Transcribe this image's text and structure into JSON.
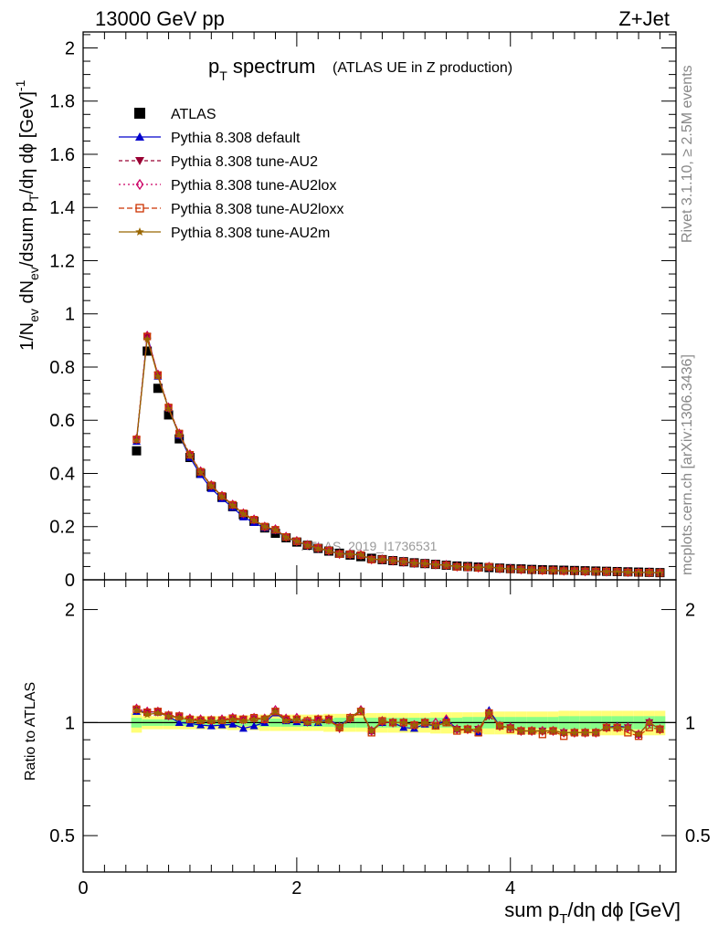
{
  "header": {
    "left": "13000 GeV pp",
    "right": "Z+Jet"
  },
  "side_text": {
    "rivet": "Rivet 3.1.10, ≥ 2.5M events",
    "mcplots": "mcplots.cern.ch [arXiv:1306.3436]"
  },
  "watermark": "ATLAS_2019_I1736531",
  "chart_data": [
    {
      "type": "line",
      "title_main": "p",
      "title_sub": "T",
      "title_rest": " spectrum",
      "title_note": "(ATLAS UE in Z production)",
      "ylabel": "1/N_ev dN_ev/dsum p_T/dη dϕ [GeV]^-1",
      "xlim": [
        0,
        5.55
      ],
      "ylim": [
        0,
        2.06
      ],
      "yticks": [
        0,
        0.2,
        0.4,
        0.6,
        0.8,
        1,
        1.2,
        1.4,
        1.6,
        1.8,
        2
      ],
      "ytick_labels": [
        "0",
        "0.2",
        "0.4",
        "0.6",
        "0.8",
        "1",
        "1.2",
        "1.4",
        "1.6",
        "1.8",
        "2"
      ],
      "x": [
        0.5,
        0.6,
        0.7,
        0.8,
        0.9,
        1.0,
        1.1,
        1.2,
        1.3,
        1.4,
        1.5,
        1.6,
        1.7,
        1.8,
        1.9,
        2.0,
        2.1,
        2.2,
        2.3,
        2.4,
        2.5,
        2.6,
        2.7,
        2.8,
        2.9,
        3.0,
        3.1,
        3.2,
        3.3,
        3.4,
        3.5,
        3.6,
        3.7,
        3.8,
        3.9,
        4.0,
        4.1,
        4.2,
        4.3,
        4.4,
        4.5,
        4.6,
        4.7,
        4.8,
        4.9,
        5.0,
        5.1,
        5.2,
        5.3,
        5.4
      ],
      "series": [
        {
          "name": "ATLAS",
          "color": "#000000",
          "marker": "square",
          "values": [
            0.485,
            0.86,
            0.72,
            0.62,
            0.53,
            0.46,
            0.4,
            0.35,
            0.31,
            0.275,
            0.245,
            0.22,
            0.195,
            0.175,
            0.158,
            0.142,
            0.13,
            0.118,
            0.108,
            0.1,
            0.093,
            0.087,
            0.081,
            0.076,
            0.072,
            0.068,
            0.064,
            0.061,
            0.058,
            0.055,
            0.052,
            0.05,
            0.048,
            0.046,
            0.044,
            0.042,
            0.041,
            0.039,
            0.038,
            0.037,
            0.036,
            0.035,
            0.034,
            0.033,
            0.032,
            0.031,
            0.03,
            0.029,
            0.028,
            0.027
          ]
        },
        {
          "name": "Pythia 8.308 default",
          "color": "#0000cc",
          "marker": "triangle-up",
          "dash": "",
          "values": [
            0.52,
            0.92,
            0.765,
            0.645,
            0.543,
            0.46,
            0.395,
            0.343,
            0.305,
            0.272,
            0.236,
            0.215,
            0.195,
            0.185,
            0.16,
            0.143,
            0.13,
            0.118,
            0.11,
            0.098,
            0.096,
            0.094,
            0.077,
            0.076,
            0.072,
            0.066,
            0.062,
            0.061,
            0.057,
            0.056,
            0.05,
            0.048,
            0.045,
            0.05,
            0.043,
            0.041,
            0.039,
            0.037,
            0.036,
            0.035,
            0.034,
            0.033,
            0.032,
            0.031,
            0.031,
            0.03,
            0.029,
            0.027,
            0.028,
            0.026
          ]
        },
        {
          "name": "Pythia 8.308 tune-AU2",
          "color": "#990033",
          "marker": "triangle-down",
          "dash": "4,3",
          "values": [
            0.525,
            0.915,
            0.77,
            0.645,
            0.548,
            0.47,
            0.405,
            0.355,
            0.315,
            0.283,
            0.25,
            0.225,
            0.198,
            0.188,
            0.161,
            0.145,
            0.13,
            0.12,
            0.11,
            0.096,
            0.095,
            0.093,
            0.077,
            0.076,
            0.072,
            0.068,
            0.063,
            0.061,
            0.057,
            0.055,
            0.05,
            0.048,
            0.046,
            0.048,
            0.043,
            0.041,
            0.039,
            0.037,
            0.036,
            0.035,
            0.034,
            0.033,
            0.032,
            0.031,
            0.031,
            0.03,
            0.029,
            0.027,
            0.028,
            0.026
          ]
        },
        {
          "name": "Pythia 8.308 tune-AU2lox",
          "color": "#cc0066",
          "marker": "diamond-open",
          "dash": "2,3",
          "values": [
            0.53,
            0.918,
            0.772,
            0.648,
            0.55,
            0.472,
            0.408,
            0.356,
            0.316,
            0.283,
            0.25,
            0.227,
            0.2,
            0.19,
            0.162,
            0.146,
            0.131,
            0.12,
            0.11,
            0.097,
            0.096,
            0.094,
            0.077,
            0.077,
            0.072,
            0.068,
            0.063,
            0.061,
            0.058,
            0.056,
            0.05,
            0.048,
            0.046,
            0.049,
            0.043,
            0.041,
            0.039,
            0.037,
            0.036,
            0.035,
            0.034,
            0.033,
            0.032,
            0.031,
            0.031,
            0.03,
            0.029,
            0.027,
            0.028,
            0.026
          ]
        },
        {
          "name": "Pythia 8.308 tune-AU2loxx",
          "color": "#cc3300",
          "marker": "square-open",
          "dash": "6,3",
          "values": [
            0.528,
            0.915,
            0.77,
            0.648,
            0.55,
            0.47,
            0.406,
            0.355,
            0.315,
            0.282,
            0.25,
            0.226,
            0.2,
            0.188,
            0.161,
            0.145,
            0.131,
            0.12,
            0.11,
            0.097,
            0.096,
            0.093,
            0.076,
            0.077,
            0.072,
            0.068,
            0.063,
            0.061,
            0.057,
            0.055,
            0.049,
            0.048,
            0.045,
            0.049,
            0.043,
            0.04,
            0.039,
            0.037,
            0.035,
            0.035,
            0.033,
            0.033,
            0.032,
            0.031,
            0.031,
            0.03,
            0.028,
            0.027,
            0.027,
            0.026
          ]
        },
        {
          "name": "Pythia 8.308 tune-AU2m",
          "color": "#996600",
          "marker": "star",
          "dash": "",
          "values": [
            0.525,
            0.905,
            0.765,
            0.643,
            0.545,
            0.468,
            0.404,
            0.353,
            0.313,
            0.28,
            0.248,
            0.224,
            0.2,
            0.188,
            0.16,
            0.145,
            0.13,
            0.118,
            0.109,
            0.097,
            0.096,
            0.094,
            0.077,
            0.077,
            0.072,
            0.068,
            0.063,
            0.061,
            0.057,
            0.055,
            0.05,
            0.048,
            0.046,
            0.049,
            0.043,
            0.041,
            0.039,
            0.037,
            0.036,
            0.035,
            0.034,
            0.033,
            0.032,
            0.031,
            0.031,
            0.03,
            0.029,
            0.027,
            0.028,
            0.026
          ]
        }
      ]
    },
    {
      "type": "line",
      "ylabel": "Ratio to ATLAS",
      "xlabel": "sum p_T/dη dϕ [GeV]",
      "xlim": [
        0,
        5.55
      ],
      "ylim": [
        0.4,
        2.4
      ],
      "log_y": true,
      "xticks": [
        0,
        2,
        4
      ],
      "xtick_labels": [
        "0",
        "2",
        "4"
      ],
      "yticks": [
        0.5,
        1,
        2
      ],
      "ytick_labels": [
        "0.5",
        "1",
        "2"
      ],
      "x": [
        0.5,
        0.6,
        0.7,
        0.8,
        0.9,
        1.0,
        1.1,
        1.2,
        1.3,
        1.4,
        1.5,
        1.6,
        1.7,
        1.8,
        1.9,
        2.0,
        2.1,
        2.2,
        2.3,
        2.4,
        2.5,
        2.6,
        2.7,
        2.8,
        2.9,
        3.0,
        3.1,
        3.2,
        3.3,
        3.4,
        3.5,
        3.6,
        3.7,
        3.8,
        3.9,
        4.0,
        4.1,
        4.2,
        4.3,
        4.4,
        4.5,
        4.6,
        4.7,
        4.8,
        4.9,
        5.0,
        5.1,
        5.2,
        5.3,
        5.4
      ],
      "band_green_halfwidth": [
        0.03,
        0.02,
        0.02,
        0.02,
        0.02,
        0.02,
        0.02,
        0.02,
        0.02,
        0.02,
        0.02,
        0.02,
        0.025,
        0.025,
        0.025,
        0.025,
        0.025,
        0.025,
        0.025,
        0.03,
        0.03,
        0.03,
        0.03,
        0.03,
        0.03,
        0.03,
        0.03,
        0.03,
        0.03,
        0.03,
        0.03,
        0.035,
        0.035,
        0.035,
        0.035,
        0.035,
        0.035,
        0.035,
        0.035,
        0.035,
        0.04,
        0.04,
        0.04,
        0.04,
        0.04,
        0.04,
        0.04,
        0.04,
        0.04,
        0.04
      ],
      "band_yellow_halfwidth": [
        0.06,
        0.04,
        0.04,
        0.04,
        0.04,
        0.04,
        0.04,
        0.04,
        0.04,
        0.045,
        0.045,
        0.045,
        0.05,
        0.05,
        0.05,
        0.05,
        0.05,
        0.05,
        0.055,
        0.055,
        0.055,
        0.055,
        0.06,
        0.06,
        0.06,
        0.06,
        0.06,
        0.06,
        0.065,
        0.065,
        0.065,
        0.065,
        0.065,
        0.07,
        0.07,
        0.07,
        0.07,
        0.07,
        0.07,
        0.07,
        0.075,
        0.075,
        0.075,
        0.075,
        0.075,
        0.075,
        0.075,
        0.075,
        0.075,
        0.075
      ],
      "series": [
        {
          "name": "Pythia 8.308 default",
          "color": "#0000cc",
          "marker": "triangle-up",
          "dash": "",
          "values": [
            1.07,
            1.07,
            1.065,
            1.04,
            1.0,
            0.995,
            0.985,
            0.98,
            0.985,
            0.99,
            0.965,
            0.98,
            1.0,
            1.06,
            1.01,
            1.005,
            1.0,
            1.0,
            1.02,
            0.98,
            1.03,
            1.08,
            0.95,
            1.0,
            1.0,
            0.97,
            0.965,
            0.99,
            0.98,
            1.02,
            0.96,
            0.96,
            0.94,
            1.08,
            0.98,
            0.97,
            0.95,
            0.95,
            0.95,
            0.95,
            0.94,
            0.94,
            0.94,
            0.94,
            0.97,
            0.98,
            0.97,
            0.93,
            1.0,
            0.96
          ]
        },
        {
          "name": "Pythia 8.308 tune-AU2",
          "color": "#990033",
          "marker": "triangle-down",
          "dash": "4,3",
          "values": [
            1.08,
            1.065,
            1.07,
            1.04,
            1.035,
            1.02,
            1.01,
            1.01,
            1.015,
            1.03,
            1.02,
            1.025,
            1.015,
            1.07,
            1.02,
            1.02,
            1.0,
            1.02,
            1.02,
            0.96,
            1.02,
            1.07,
            0.95,
            1.0,
            1.0,
            1.0,
            0.985,
            1.0,
            0.98,
            1.0,
            0.96,
            0.96,
            0.96,
            1.04,
            0.98,
            0.97,
            0.95,
            0.95,
            0.95,
            0.95,
            0.94,
            0.94,
            0.94,
            0.94,
            0.97,
            0.97,
            0.97,
            0.93,
            1.0,
            0.96
          ]
        },
        {
          "name": "Pythia 8.308 tune-AU2lox",
          "color": "#cc0066",
          "marker": "diamond-open",
          "dash": "2,3",
          "values": [
            1.09,
            1.07,
            1.07,
            1.045,
            1.04,
            1.025,
            1.02,
            1.015,
            1.02,
            1.03,
            1.02,
            1.03,
            1.025,
            1.08,
            1.025,
            1.03,
            1.01,
            1.02,
            1.02,
            0.97,
            1.03,
            1.08,
            0.95,
            1.01,
            1.0,
            1.0,
            0.985,
            1.0,
            1.0,
            1.02,
            0.96,
            0.96,
            0.96,
            1.06,
            0.98,
            0.97,
            0.95,
            0.95,
            0.95,
            0.95,
            0.94,
            0.94,
            0.94,
            0.94,
            0.97,
            0.97,
            0.97,
            0.93,
            1.0,
            0.96
          ]
        },
        {
          "name": "Pythia 8.308 tune-AU2loxx",
          "color": "#cc3300",
          "marker": "square-open",
          "dash": "6,3",
          "values": [
            1.085,
            1.065,
            1.07,
            1.045,
            1.04,
            1.02,
            1.015,
            1.015,
            1.015,
            1.025,
            1.02,
            1.03,
            1.02,
            1.07,
            1.02,
            1.02,
            1.01,
            1.02,
            1.02,
            0.97,
            1.03,
            1.07,
            0.94,
            1.01,
            1.0,
            1.0,
            0.985,
            1.0,
            0.98,
            1.0,
            0.95,
            0.96,
            0.94,
            1.06,
            0.98,
            0.96,
            0.95,
            0.95,
            0.93,
            0.95,
            0.92,
            0.94,
            0.94,
            0.94,
            0.97,
            0.97,
            0.94,
            0.92,
            0.97,
            0.96
          ]
        },
        {
          "name": "Pythia 8.308 tune-AU2m",
          "color": "#996600",
          "marker": "star",
          "dash": "",
          "values": [
            1.08,
            1.05,
            1.06,
            1.04,
            1.03,
            1.015,
            1.01,
            1.01,
            1.01,
            1.02,
            1.01,
            1.02,
            1.025,
            1.07,
            1.01,
            1.02,
            1.0,
            1.0,
            1.01,
            0.97,
            1.03,
            1.08,
            0.95,
            1.01,
            1.0,
            1.0,
            0.985,
            1.0,
            0.98,
            1.0,
            0.96,
            0.96,
            0.96,
            1.06,
            0.98,
            0.97,
            0.95,
            0.95,
            0.95,
            0.95,
            0.94,
            0.94,
            0.94,
            0.94,
            0.97,
            0.97,
            0.97,
            0.93,
            1.0,
            0.96
          ]
        }
      ]
    }
  ]
}
